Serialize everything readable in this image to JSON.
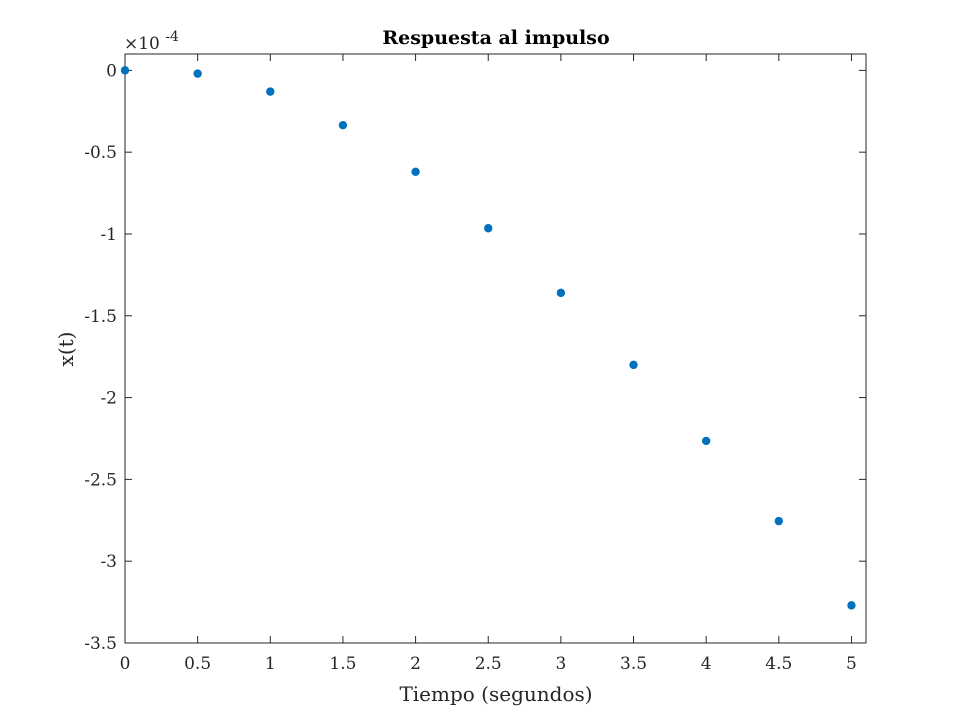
{
  "chart_data": {
    "type": "scatter",
    "title": "Respuesta al impulso",
    "xlabel": "Tiempo (segundos)",
    "ylabel": "x(t)",
    "y_exponent_label": {
      "prefix": "×10",
      "exponent": "-4"
    },
    "y_scale_factor": 0.0001,
    "xlim": [
      0,
      5.1
    ],
    "ylim": [
      -3.5,
      0.1
    ],
    "xticks": [
      0,
      0.5,
      1,
      1.5,
      2,
      2.5,
      3,
      3.5,
      4,
      4.5,
      5
    ],
    "xtick_labels": [
      "0",
      "0.5",
      "1",
      "1.5",
      "2",
      "2.5",
      "3",
      "3.5",
      "4",
      "4.5",
      "5"
    ],
    "yticks": [
      0,
      -0.5,
      -1,
      -1.5,
      -2,
      -2.5,
      -3,
      -3.5
    ],
    "ytick_labels": [
      "0",
      "-0.5",
      "-1",
      "-1.5",
      "-2",
      "-2.5",
      "-3",
      "-3.5"
    ],
    "grid": false,
    "box": true,
    "series": [
      {
        "color": "#0072BD",
        "x": [
          0,
          0.5,
          1,
          1.5,
          2,
          2.5,
          3,
          3.5,
          4,
          4.5,
          5
        ],
        "y": [
          0,
          -0.02,
          -0.13,
          -0.335,
          -0.62,
          -0.965,
          -1.36,
          -1.8,
          -2.265,
          -2.755,
          -3.27
        ]
      }
    ]
  }
}
